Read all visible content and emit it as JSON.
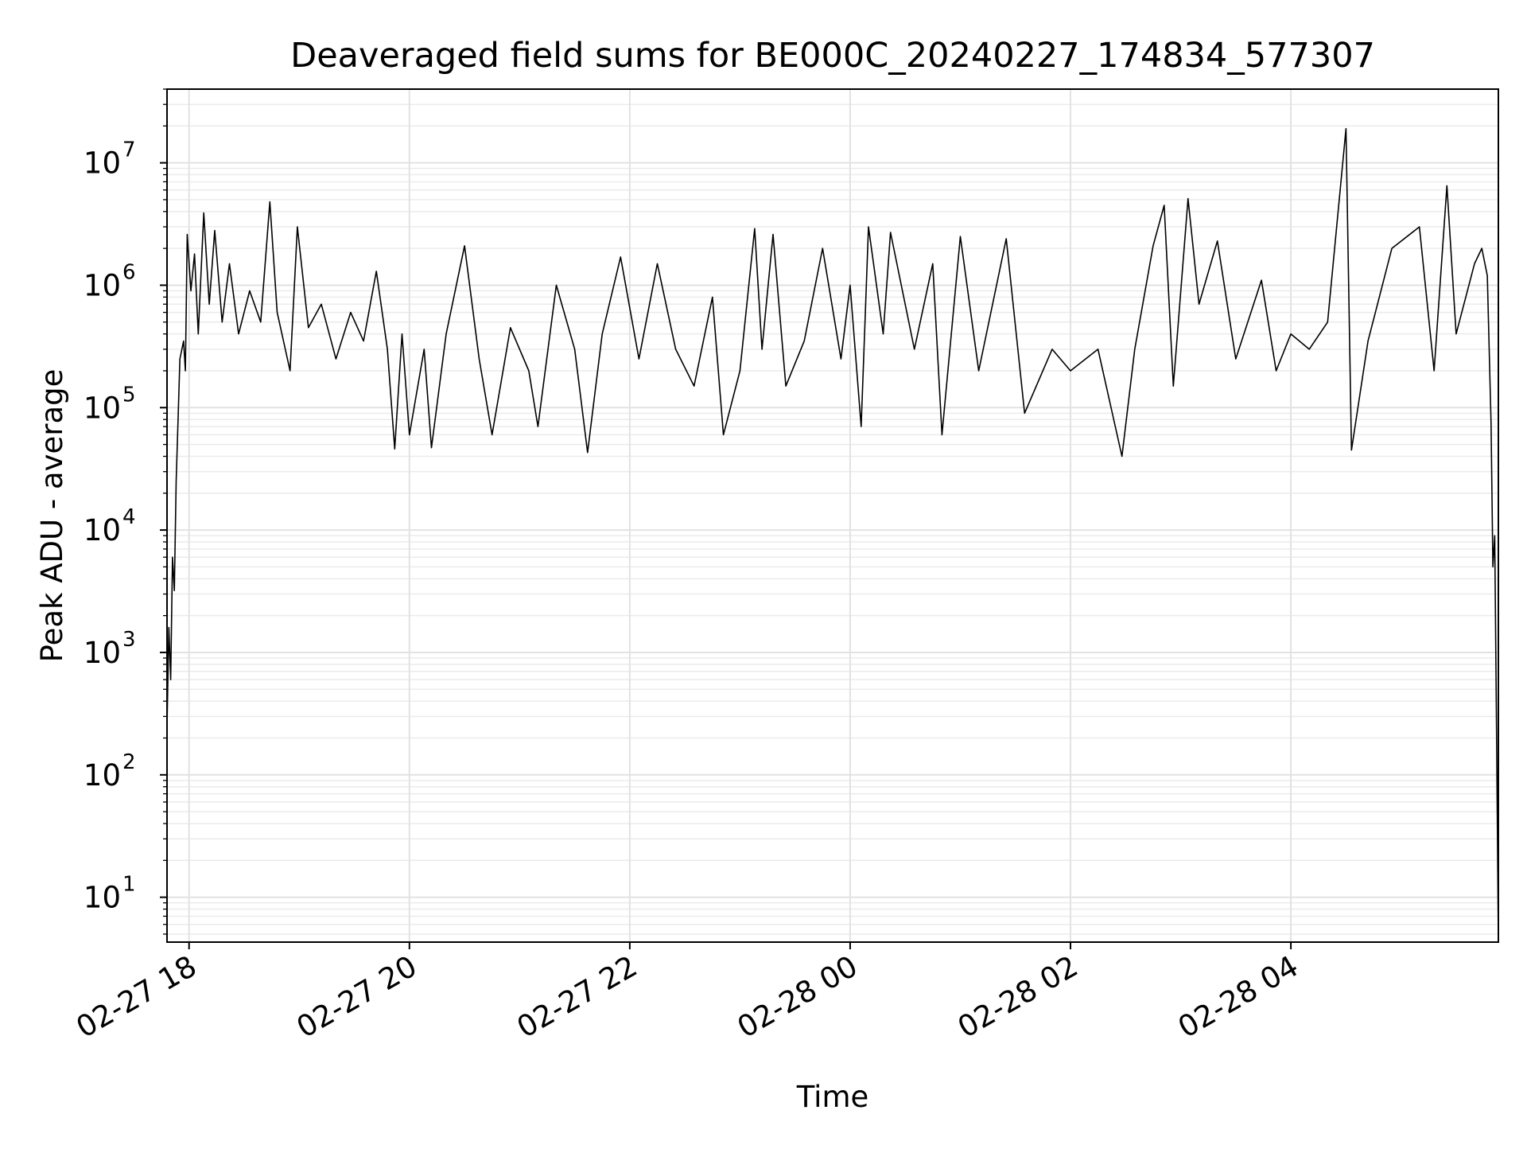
{
  "chart_data": {
    "type": "line",
    "title": "Deaveraged field sums for BE000C_20240227_174834_577307",
    "xlabel": "Time",
    "ylabel": "Peak ADU - average",
    "xscale": "time",
    "yscale": "log",
    "xlim": [
      "2024-02-27 17:48",
      "2024-02-28 05:53"
    ],
    "ylim": [
      4.3,
      40000000
    ],
    "grid": true,
    "line_color": "#000000",
    "x_ticks": [
      {
        "value": "2024-02-27 18:00",
        "label": "02-27 18"
      },
      {
        "value": "2024-02-27 20:00",
        "label": "02-27 20"
      },
      {
        "value": "2024-02-27 22:00",
        "label": "02-27 22"
      },
      {
        "value": "2024-02-28 00:00",
        "label": "02-28 00"
      },
      {
        "value": "2024-02-28 02:00",
        "label": "02-28 02"
      },
      {
        "value": "2024-02-28 04:00",
        "label": "02-28 04"
      }
    ],
    "y_ticks": [
      {
        "value": 10,
        "base": "10",
        "exp": "1"
      },
      {
        "value": 100,
        "base": "10",
        "exp": "2"
      },
      {
        "value": 1000,
        "base": "10",
        "exp": "3"
      },
      {
        "value": 10000,
        "base": "10",
        "exp": "4"
      },
      {
        "value": 100000,
        "base": "10",
        "exp": "5"
      },
      {
        "value": 1000000,
        "base": "10",
        "exp": "6"
      },
      {
        "value": 10000000,
        "base": "10",
        "exp": "7"
      }
    ],
    "series": [
      {
        "points": [
          [
            "2024-02-27 17:48",
            250
          ],
          [
            "2024-02-27 17:49",
            1600
          ],
          [
            "2024-02-27 17:50",
            600
          ],
          [
            "2024-02-27 17:51",
            6000
          ],
          [
            "2024-02-27 17:52",
            3200
          ],
          [
            "2024-02-27 17:53",
            25000
          ],
          [
            "2024-02-27 17:54",
            80000
          ],
          [
            "2024-02-27 17:55",
            250000
          ],
          [
            "2024-02-27 17:57",
            350000
          ],
          [
            "2024-02-27 17:58",
            200000
          ],
          [
            "2024-02-27 17:59",
            2600000
          ],
          [
            "2024-02-27 18:01",
            900000
          ],
          [
            "2024-02-27 18:03",
            1800000
          ],
          [
            "2024-02-27 18:05",
            400000
          ],
          [
            "2024-02-27 18:08",
            3900000
          ],
          [
            "2024-02-27 18:11",
            700000
          ],
          [
            "2024-02-27 18:14",
            2800000
          ],
          [
            "2024-02-27 18:18",
            500000
          ],
          [
            "2024-02-27 18:22",
            1500000
          ],
          [
            "2024-02-27 18:27",
            400000
          ],
          [
            "2024-02-27 18:33",
            900000
          ],
          [
            "2024-02-27 18:39",
            500000
          ],
          [
            "2024-02-27 18:44",
            4800000
          ],
          [
            "2024-02-27 18:48",
            600000
          ],
          [
            "2024-02-27 18:55",
            200000
          ],
          [
            "2024-02-27 18:59",
            3000000
          ],
          [
            "2024-02-27 19:05",
            450000
          ],
          [
            "2024-02-27 19:12",
            700000
          ],
          [
            "2024-02-27 19:20",
            250000
          ],
          [
            "2024-02-27 19:28",
            600000
          ],
          [
            "2024-02-27 19:35",
            350000
          ],
          [
            "2024-02-27 19:42",
            1300000
          ],
          [
            "2024-02-27 19:48",
            300000
          ],
          [
            "2024-02-27 19:52",
            46000
          ],
          [
            "2024-02-27 19:56",
            400000
          ],
          [
            "2024-02-27 20:00",
            60000
          ],
          [
            "2024-02-27 20:08",
            300000
          ],
          [
            "2024-02-27 20:12",
            47000
          ],
          [
            "2024-02-27 20:20",
            400000
          ],
          [
            "2024-02-27 20:30",
            2100000
          ],
          [
            "2024-02-27 20:38",
            250000
          ],
          [
            "2024-02-27 20:45",
            60000
          ],
          [
            "2024-02-27 20:55",
            450000
          ],
          [
            "2024-02-27 21:05",
            200000
          ],
          [
            "2024-02-27 21:10",
            70000
          ],
          [
            "2024-02-27 21:20",
            1000000
          ],
          [
            "2024-02-27 21:30",
            300000
          ],
          [
            "2024-02-27 21:37",
            43000
          ],
          [
            "2024-02-27 21:45",
            400000
          ],
          [
            "2024-02-27 21:55",
            1700000
          ],
          [
            "2024-02-27 22:05",
            250000
          ],
          [
            "2024-02-27 22:15",
            1500000
          ],
          [
            "2024-02-27 22:25",
            300000
          ],
          [
            "2024-02-27 22:35",
            150000
          ],
          [
            "2024-02-27 22:45",
            800000
          ],
          [
            "2024-02-27 22:51",
            60000
          ],
          [
            "2024-02-27 23:00",
            200000
          ],
          [
            "2024-02-27 23:08",
            2900000
          ],
          [
            "2024-02-27 23:12",
            300000
          ],
          [
            "2024-02-27 23:18",
            2600000
          ],
          [
            "2024-02-27 23:25",
            150000
          ],
          [
            "2024-02-27 23:35",
            350000
          ],
          [
            "2024-02-27 23:45",
            2000000
          ],
          [
            "2024-02-27 23:55",
            250000
          ],
          [
            "2024-02-28 00:00",
            1000000
          ],
          [
            "2024-02-28 00:06",
            70000
          ],
          [
            "2024-02-28 00:10",
            3000000
          ],
          [
            "2024-02-28 00:18",
            400000
          ],
          [
            "2024-02-28 00:22",
            2700000
          ],
          [
            "2024-02-28 00:35",
            300000
          ],
          [
            "2024-02-28 00:45",
            1500000
          ],
          [
            "2024-02-28 00:50",
            60000
          ],
          [
            "2024-02-28 01:00",
            2500000
          ],
          [
            "2024-02-28 01:10",
            200000
          ],
          [
            "2024-02-28 01:25",
            2400000
          ],
          [
            "2024-02-28 01:35",
            90000
          ],
          [
            "2024-02-28 01:50",
            300000
          ],
          [
            "2024-02-28 02:00",
            200000
          ],
          [
            "2024-02-28 02:15",
            300000
          ],
          [
            "2024-02-28 02:28",
            40000
          ],
          [
            "2024-02-28 02:35",
            300000
          ],
          [
            "2024-02-28 02:45",
            2100000
          ],
          [
            "2024-02-28 02:51",
            4500000
          ],
          [
            "2024-02-28 02:56",
            150000
          ],
          [
            "2024-02-28 03:04",
            5100000
          ],
          [
            "2024-02-28 03:10",
            700000
          ],
          [
            "2024-02-28 03:20",
            2300000
          ],
          [
            "2024-02-28 03:30",
            250000
          ],
          [
            "2024-02-28 03:44",
            1100000
          ],
          [
            "2024-02-28 03:52",
            200000
          ],
          [
            "2024-02-28 04:00",
            400000
          ],
          [
            "2024-02-28 04:10",
            300000
          ],
          [
            "2024-02-28 04:20",
            500000
          ],
          [
            "2024-02-28 04:30",
            19000000
          ],
          [
            "2024-02-28 04:33",
            45000
          ],
          [
            "2024-02-28 04:42",
            350000
          ],
          [
            "2024-02-28 04:55",
            2000000
          ],
          [
            "2024-02-28 05:10",
            3000000
          ],
          [
            "2024-02-28 05:18",
            200000
          ],
          [
            "2024-02-28 05:25",
            6500000
          ],
          [
            "2024-02-28 05:30",
            400000
          ],
          [
            "2024-02-28 05:40",
            1500000
          ],
          [
            "2024-02-28 05:44",
            2000000
          ],
          [
            "2024-02-28 05:47",
            1200000
          ],
          [
            "2024-02-28 05:49",
            75000
          ],
          [
            "2024-02-28 05:50",
            5000
          ],
          [
            "2024-02-28 05:51",
            9000
          ],
          [
            "2024-02-28 05:52",
            230
          ],
          [
            "2024-02-28 05:53",
            4.3
          ]
        ]
      }
    ]
  }
}
